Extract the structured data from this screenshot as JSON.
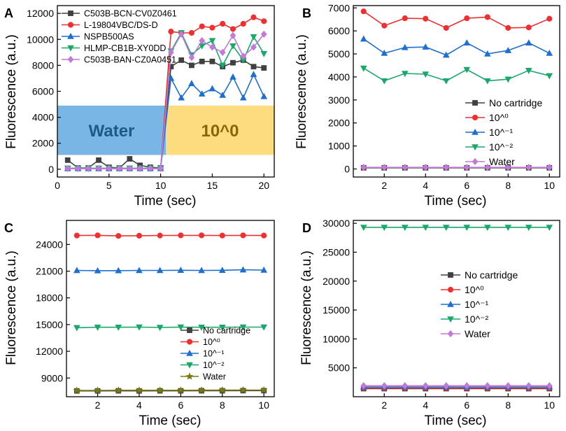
{
  "chart_data": [
    {
      "panel": "A",
      "type": "line",
      "xlabel": "Time (sec)",
      "ylabel": "Fluorescence (a.u.)",
      "xlim": [
        0,
        21
      ],
      "ylim": [
        -600,
        12600
      ],
      "xticks": [
        0,
        5,
        10,
        15,
        20
      ],
      "yticks": [
        0,
        2000,
        4000,
        6000,
        8000,
        10000,
        12000
      ],
      "legend_position": "top-left",
      "regions": [
        {
          "label": "Water",
          "x_range": [
            0,
            10.5
          ],
          "y_range": [
            1100,
            4900
          ],
          "color": "#6aaee3",
          "text_color": "#1d5a86"
        },
        {
          "label": "10^0",
          "x_range": [
            10.5,
            21
          ],
          "y_range": [
            1100,
            4900
          ],
          "color": "#fcd870",
          "text_color": "#8a6508"
        }
      ],
      "x": [
        1,
        2,
        3,
        4,
        5,
        6,
        7,
        8,
        9,
        10,
        11,
        12,
        13,
        14,
        15,
        16,
        17,
        18,
        19,
        20
      ],
      "series": [
        {
          "name": "C503B-BCN-CV0Z0461",
          "color": "#404040",
          "marker": "square",
          "values": [
            700,
            100,
            100,
            700,
            150,
            100,
            800,
            300,
            150,
            100,
            7900,
            8400,
            8000,
            8300,
            8300,
            7900,
            8200,
            8400,
            7900,
            7800
          ]
        },
        {
          "name": "L-19804VBC/DS-D",
          "color": "#ee3030",
          "marker": "circle",
          "values": [
            50,
            50,
            50,
            50,
            50,
            50,
            50,
            50,
            50,
            50,
            10600,
            10500,
            10500,
            11000,
            10900,
            11200,
            10800,
            11200,
            11700,
            11400
          ]
        },
        {
          "name": "NSPB500AS",
          "color": "#1f6fd0",
          "marker": "triangle-up",
          "values": [
            50,
            50,
            50,
            50,
            50,
            50,
            50,
            50,
            50,
            50,
            7000,
            5500,
            6600,
            5800,
            6200,
            5700,
            7100,
            5500,
            7300,
            5600
          ]
        },
        {
          "name": "HLMP-CB1B-XY0DD",
          "color": "#1aa86a",
          "marker": "triangle-down",
          "values": [
            80,
            80,
            80,
            80,
            80,
            80,
            80,
            80,
            80,
            80,
            9100,
            10500,
            8800,
            9500,
            9900,
            8000,
            9500,
            8400,
            10200,
            8900
          ]
        },
        {
          "name": "C503B-BAN-CZ0A0451",
          "color": "#c27ad8",
          "marker": "diamond",
          "values": [
            60,
            60,
            60,
            60,
            60,
            60,
            60,
            60,
            60,
            60,
            9000,
            10400,
            8600,
            9900,
            9400,
            9000,
            10300,
            8700,
            9400,
            10400
          ]
        }
      ]
    },
    {
      "panel": "B",
      "type": "line",
      "xlabel": "Time (sec)",
      "ylabel": "Fluorescence (a.u.)",
      "xlim": [
        0.5,
        10.5
      ],
      "ylim": [
        -350,
        7100
      ],
      "xticks": [
        2,
        4,
        6,
        8,
        10
      ],
      "yticks": [
        0,
        1000,
        2000,
        3000,
        4000,
        5000,
        6000,
        7000
      ],
      "legend_position": "bottom-right",
      "x": [
        1,
        2,
        3,
        4,
        5,
        6,
        7,
        8,
        9,
        10
      ],
      "series": [
        {
          "name": "No cartridge",
          "color": "#404040",
          "marker": "square",
          "values": [
            50,
            50,
            50,
            50,
            50,
            50,
            50,
            50,
            50,
            50
          ]
        },
        {
          "name": "10^0",
          "color": "#ee3030",
          "marker": "circle",
          "values": [
            6850,
            6230,
            6550,
            6530,
            6130,
            6550,
            6600,
            6130,
            6150,
            6530
          ]
        },
        {
          "name": "10^-1",
          "color": "#1f6fd0",
          "marker": "triangle-up",
          "values": [
            5650,
            5030,
            5280,
            5300,
            4950,
            5480,
            5000,
            5150,
            5480,
            5030
          ]
        },
        {
          "name": "10^-2",
          "color": "#1aa86a",
          "marker": "triangle-down",
          "values": [
            4380,
            3830,
            4150,
            4120,
            3830,
            4320,
            3830,
            3900,
            4280,
            4050
          ]
        },
        {
          "name": "Water",
          "color": "#c27ad8",
          "marker": "diamond",
          "values": [
            70,
            70,
            70,
            70,
            70,
            70,
            70,
            70,
            70,
            70
          ]
        }
      ]
    },
    {
      "panel": "C",
      "type": "line",
      "xlabel": "Time (sec)",
      "ylabel": "Fluorescence (a.u.)",
      "xlim": [
        0.5,
        10.5
      ],
      "ylim": [
        6900,
        26700
      ],
      "xticks": [
        2,
        4,
        6,
        8,
        10
      ],
      "yticks": [
        9000,
        12000,
        15000,
        18000,
        21000,
        24000
      ],
      "legend_position": "bottom-right",
      "x": [
        1,
        2,
        3,
        4,
        5,
        6,
        7,
        8,
        9,
        10
      ],
      "series": [
        {
          "name": "No cartridge",
          "color": "#404040",
          "marker": "square",
          "values": [
            7550,
            7550,
            7560,
            7550,
            7560,
            7560,
            7570,
            7570,
            7580,
            7580
          ]
        },
        {
          "name": "10^0",
          "color": "#ee3030",
          "marker": "circle",
          "values": [
            25000,
            25020,
            24960,
            24980,
            25000,
            25020,
            25020,
            25000,
            25020,
            25000
          ]
        },
        {
          "name": "10^-1",
          "color": "#1f6fd0",
          "marker": "triangle-up",
          "values": [
            21080,
            21050,
            21060,
            21080,
            21080,
            21100,
            21080,
            21100,
            21150,
            21120
          ]
        },
        {
          "name": "10^-2",
          "color": "#1aa86a",
          "marker": "triangle-down",
          "values": [
            14650,
            14700,
            14700,
            14720,
            14680,
            14720,
            14700,
            14700,
            14720,
            14720
          ]
        },
        {
          "name": "Water",
          "color": "#7a7a10",
          "marker": "star",
          "values": [
            7600,
            7610,
            7620,
            7620,
            7620,
            7620,
            7630,
            7640,
            7650,
            7650
          ]
        }
      ]
    },
    {
      "panel": "D",
      "type": "line",
      "xlabel": "Time (sec)",
      "ylabel": "Fluorescence (a.u.)",
      "xlim": [
        0.5,
        10.5
      ],
      "ylim": [
        0,
        30500
      ],
      "xticks": [
        2,
        4,
        6,
        8,
        10
      ],
      "yticks": [
        5000,
        10000,
        15000,
        20000,
        25000,
        30000
      ],
      "legend_position": "center-right",
      "x": [
        1,
        2,
        3,
        4,
        5,
        6,
        7,
        8,
        9,
        10
      ],
      "series": [
        {
          "name": "No cartridge",
          "color": "#404040",
          "marker": "square",
          "values": [
            1400,
            1400,
            1400,
            1400,
            1400,
            1400,
            1400,
            1400,
            1400,
            1400
          ]
        },
        {
          "name": "10^0",
          "color": "#ee3030",
          "marker": "circle",
          "values": [
            1500,
            1500,
            1500,
            1500,
            1500,
            1500,
            1500,
            1500,
            1500,
            1500
          ]
        },
        {
          "name": "10^-1",
          "color": "#1f6fd0",
          "marker": "triangle-up",
          "values": [
            1700,
            1700,
            1700,
            1700,
            1700,
            1700,
            1700,
            1700,
            1700,
            1700
          ]
        },
        {
          "name": "10^-2",
          "color": "#1aa86a",
          "marker": "triangle-down",
          "values": [
            29300,
            29300,
            29300,
            29300,
            29300,
            29300,
            29300,
            29300,
            29300,
            29300
          ]
        },
        {
          "name": "Water",
          "color": "#c27ad8",
          "marker": "diamond",
          "values": [
            1900,
            1900,
            1900,
            1900,
            1900,
            1900,
            1900,
            1900,
            1900,
            1900
          ]
        }
      ]
    }
  ]
}
